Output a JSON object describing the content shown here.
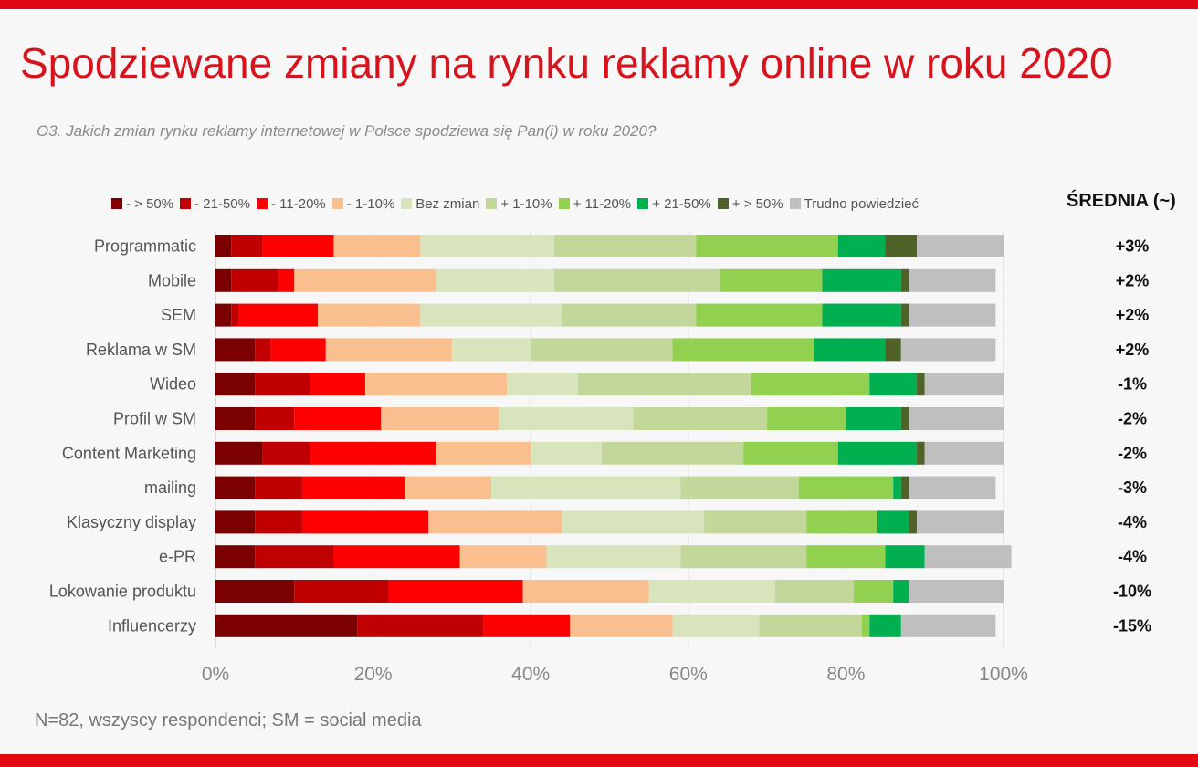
{
  "title": "Spodziewane zmiany na rynku reklamy online w roku 2020",
  "subtitle": "O3. Jakich zmian rynku reklamy internetowej w Polsce spodziewa się Pan(i) w roku 2020?",
  "footnote": "N=82, wszyscy respondenci; SM = social media",
  "average_header": "ŚREDNIA (~)",
  "chart_data": {
    "type": "bar",
    "orientation": "horizontal",
    "stacked": true,
    "xlim": [
      0,
      100
    ],
    "x_ticks": [
      "0%",
      "20%",
      "40%",
      "60%",
      "80%",
      "100%"
    ],
    "grid": true,
    "legend_position": "top",
    "categories": [
      "Programmatic",
      "Mobile",
      "SEM",
      "Reklama w SM",
      "Wideo",
      "Profil w SM",
      "Content Marketing",
      "mailing",
      "Klasyczny display",
      "e-PR",
      "Lokowanie produktu",
      "Influencerzy"
    ],
    "averages": [
      "+3%",
      "+2%",
      "+2%",
      "+2%",
      "-1%",
      "-2%",
      "-2%",
      "-3%",
      "-4%",
      "-4%",
      "-10%",
      "-15%"
    ],
    "series": [
      {
        "name": "- > 50%",
        "color": "#7b0000",
        "values": [
          2,
          2,
          2,
          5,
          5,
          5,
          6,
          5,
          5,
          5,
          10,
          18
        ]
      },
      {
        "name": "- 21-50%",
        "color": "#c00000",
        "values": [
          4,
          6,
          1,
          2,
          7,
          5,
          6,
          6,
          6,
          10,
          12,
          16
        ]
      },
      {
        "name": "- 11-20%",
        "color": "#ff0000",
        "values": [
          9,
          2,
          10,
          7,
          7,
          11,
          16,
          13,
          16,
          16,
          17,
          11
        ]
      },
      {
        "name": "- 1-10%",
        "color": "#fabf8f",
        "values": [
          11,
          18,
          13,
          16,
          18,
          15,
          12,
          11,
          17,
          11,
          16,
          13
        ]
      },
      {
        "name": "Bez zmian",
        "color": "#d8e4bc",
        "values": [
          17,
          15,
          18,
          10,
          9,
          17,
          9,
          24,
          18,
          17,
          16,
          11
        ]
      },
      {
        "name": "+ 1-10%",
        "color": "#c4d79b",
        "values": [
          18,
          21,
          17,
          18,
          22,
          17,
          18,
          15,
          13,
          16,
          10,
          13
        ]
      },
      {
        "name": "+ 11-20%",
        "color": "#92d050",
        "values": [
          18,
          13,
          16,
          18,
          15,
          10,
          12,
          12,
          9,
          10,
          5,
          1
        ]
      },
      {
        "name": "+ 21-50%",
        "color": "#00b050",
        "values": [
          6,
          10,
          10,
          9,
          6,
          7,
          10,
          1,
          4,
          5,
          2,
          4
        ]
      },
      {
        "name": "+ > 50%",
        "color": "#4f6228",
        "values": [
          4,
          1,
          1,
          2,
          1,
          1,
          1,
          1,
          1,
          0,
          0,
          0
        ]
      },
      {
        "name": "Trudno powiedzieć",
        "color": "#bfbfbf",
        "values": [
          11,
          11,
          11,
          12,
          10,
          12,
          10,
          11,
          11,
          11,
          12,
          12
        ]
      }
    ]
  }
}
